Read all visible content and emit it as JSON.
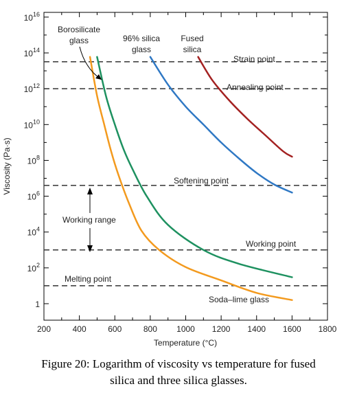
{
  "chart_data": {
    "type": "line",
    "title": "",
    "xlabel": "Temperature (°C)",
    "ylabel": "Viscosity (Pa·s)",
    "x_scale": "linear",
    "y_scale": "log",
    "xlim": [
      200,
      1800
    ],
    "ylim": [
      0.1,
      1e+16
    ],
    "x_ticks": [
      "200",
      "400",
      "600",
      "800",
      "1000",
      "1200",
      "1400",
      "1600",
      "1800"
    ],
    "y_ticks": [
      {
        "base": "1",
        "exp": ""
      },
      {
        "base": "10",
        "exp": "2"
      },
      {
        "base": "10",
        "exp": "4"
      },
      {
        "base": "10",
        "exp": "6"
      },
      {
        "base": "10",
        "exp": "8"
      },
      {
        "base": "10",
        "exp": "10"
      },
      {
        "base": "10",
        "exp": "12"
      },
      {
        "base": "10",
        "exp": "14"
      },
      {
        "base": "10",
        "exp": "16"
      }
    ],
    "reference_lines": [
      {
        "label": "Strain point",
        "viscosity": 32000000000000.0
      },
      {
        "label": "Annealing point",
        "viscosity": 1000000000000.0
      },
      {
        "label": "Softening point",
        "viscosity": 4000000.0
      },
      {
        "label": "Working point",
        "viscosity": 1000.0
      },
      {
        "label": "Melting point",
        "viscosity": 10
      }
    ],
    "working_range_label": "Working range",
    "series": [
      {
        "name": "Soda–lime glass",
        "color": "#F39A1E",
        "x": [
          460,
          500,
          540,
          580,
          620,
          680,
          750,
          850,
          1000,
          1200,
          1400,
          1600
        ],
        "y": [
          60000000000000.0,
          400000000000.0,
          10000000000.0,
          300000000.0,
          16000000.0,
          400000.0,
          12000.0,
          1000,
          110,
          20,
          4,
          1.6
        ]
      },
      {
        "name": "Borosilicate glass",
        "color": "#1E9160",
        "x": [
          500,
          550,
          600,
          650,
          700,
          780,
          900,
          1100,
          1300,
          1600
        ],
        "y": [
          60000000000000.0,
          400000000000.0,
          10000000000.0,
          400000000.0,
          32000000.0,
          1000000.0,
          25000.0,
          1000,
          170,
          30
        ]
      },
      {
        "name": "96% silica glass",
        "color": "#2F78C4",
        "x": [
          800,
          900,
          1000,
          1100,
          1200,
          1300,
          1400,
          1500,
          1600
        ],
        "y": [
          60000000000000.0,
          1700000000000.0,
          100000000000.0,
          10000000000.0,
          1000000000.0,
          130000000.0,
          20000000.0,
          4500000.0,
          1600000.0
        ]
      },
      {
        "name": "Fused silica",
        "color": "#A32121",
        "x": [
          1070,
          1150,
          1250,
          1350,
          1450,
          1550,
          1600
        ],
        "y": [
          60000000000000.0,
          3000000000000.0,
          200000000000.0,
          20000000000.0,
          2500000000.0,
          320000000.0,
          160000000.0
        ]
      }
    ],
    "labels": {
      "borosilicate": [
        "Borosilicate",
        "glass"
      ],
      "silica96": [
        "96% silica",
        "glass"
      ],
      "fused": [
        "Fused",
        "silica"
      ],
      "soda": "Soda–lime glass"
    },
    "grid": false,
    "legend": "none"
  },
  "caption": {
    "line1": "Figure 20: Logarithm of viscosity vs temperature for fused",
    "line2": "silica and three silica glasses."
  }
}
